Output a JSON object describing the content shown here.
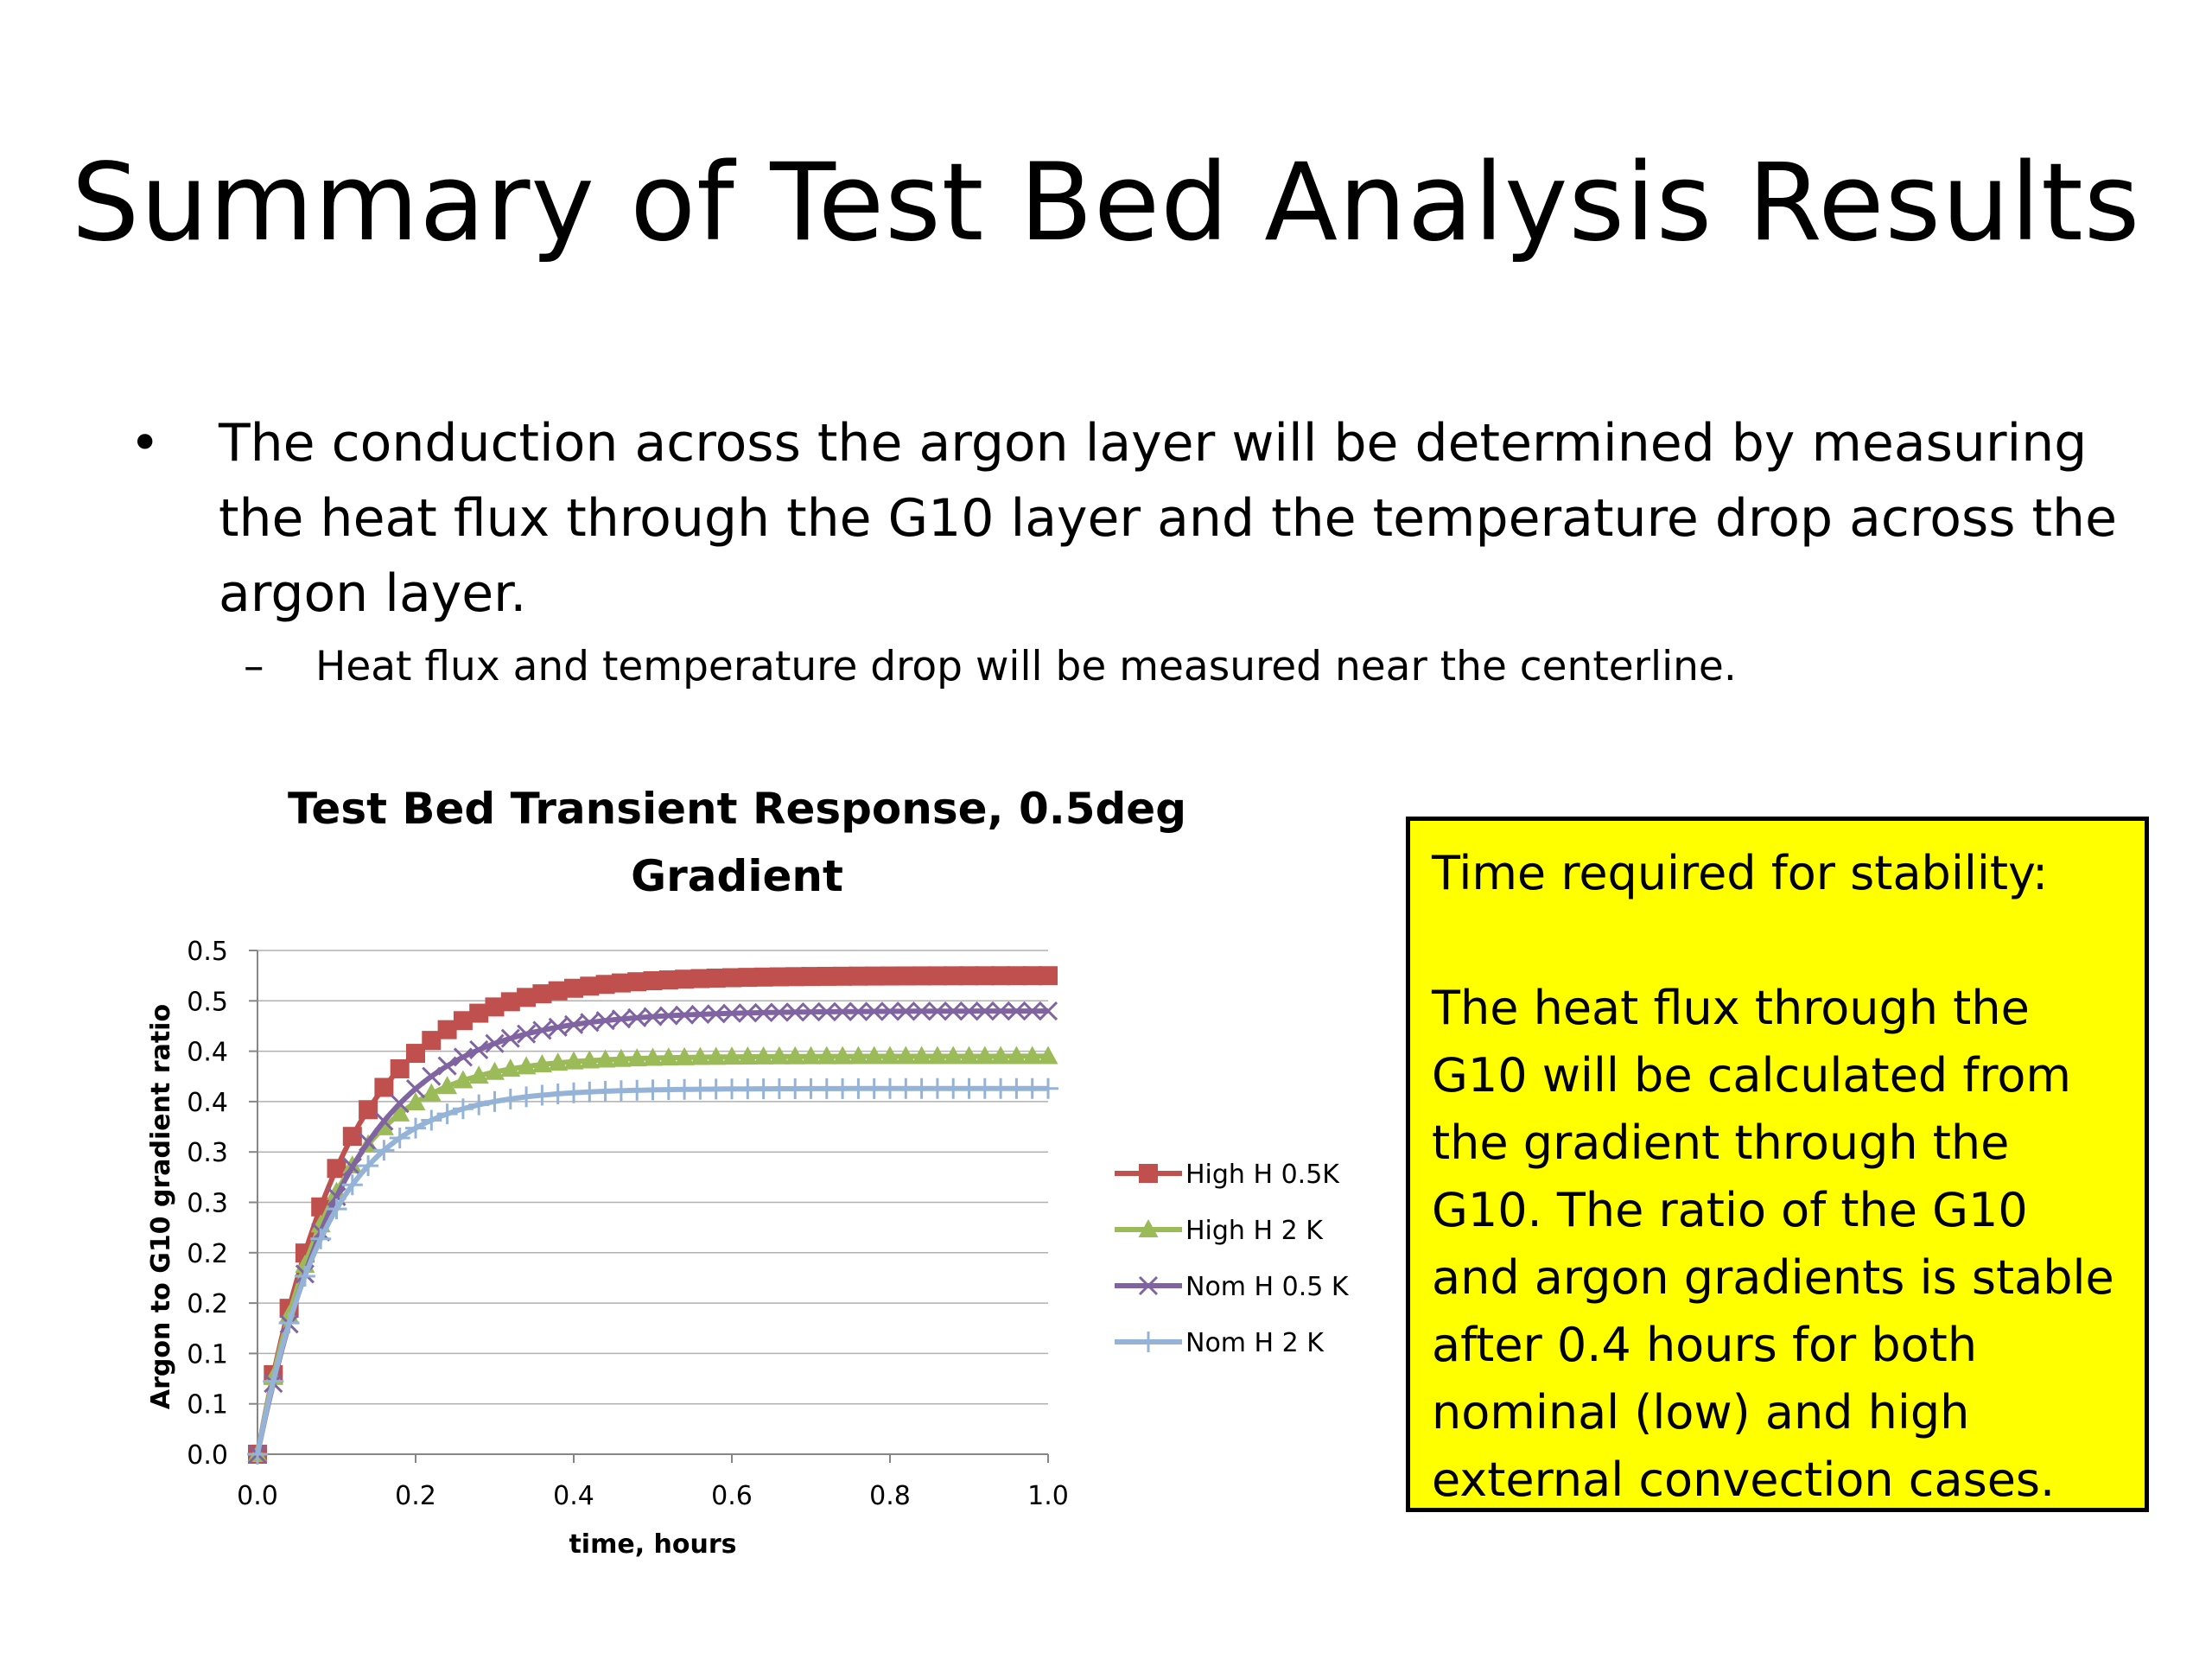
{
  "slide": {
    "title": "Summary of Test Bed Analysis Results",
    "bullet_mark": "•",
    "bullet": "The conduction across the argon layer will be determined by measuring the heat flux through the G10 layer and the temperature drop across the argon layer.",
    "subbullet_mark": "–",
    "subbullet": "Heat flux and temperature drop will be measured near the centerline."
  },
  "note": {
    "heading": "Time required for stability:",
    "body": "The heat flux through the G10 will be calculated from the gradient through the G10. The ratio of the G10 and argon gradients is stable after 0.4 hours for both nominal (low) and high external convection cases."
  },
  "chart_data": {
    "type": "line",
    "title_lines": [
      "Test Bed Transient Response, 0.5deg",
      "Gradient"
    ],
    "xlabel": "time, hours",
    "ylabel": "Argon to G10 gradient ratio",
    "xlim": [
      0,
      1
    ],
    "ylim": [
      0,
      0.5
    ],
    "x_ticks": [
      "0.0",
      "0.2",
      "0.4",
      "0.6",
      "0.8",
      "1.0"
    ],
    "y_tick_labels": [
      "0.0",
      "0.1",
      "0.1",
      "0.2",
      "0.2",
      "0.3",
      "0.3",
      "0.4",
      "0.4",
      "0.5",
      "0.5"
    ],
    "grid": true,
    "legend": "right",
    "series": [
      {
        "name": "High H 0.5K",
        "color": "#c0504d",
        "marker": "square",
        "ymax": 0.475,
        "tau": 0.11
      },
      {
        "name": "High H 2 K",
        "color": "#9bbb59",
        "marker": "triangle",
        "ymax": 0.395,
        "tau": 0.093
      },
      {
        "name": "Nom H 0.5 K",
        "color": "#8064a2",
        "marker": "x",
        "ymax": 0.44,
        "tau": 0.115
      },
      {
        "name": "Nom H 2 K",
        "color": "#95b3d7",
        "marker": "plus",
        "ymax": 0.363,
        "tau": 0.09
      }
    ]
  }
}
